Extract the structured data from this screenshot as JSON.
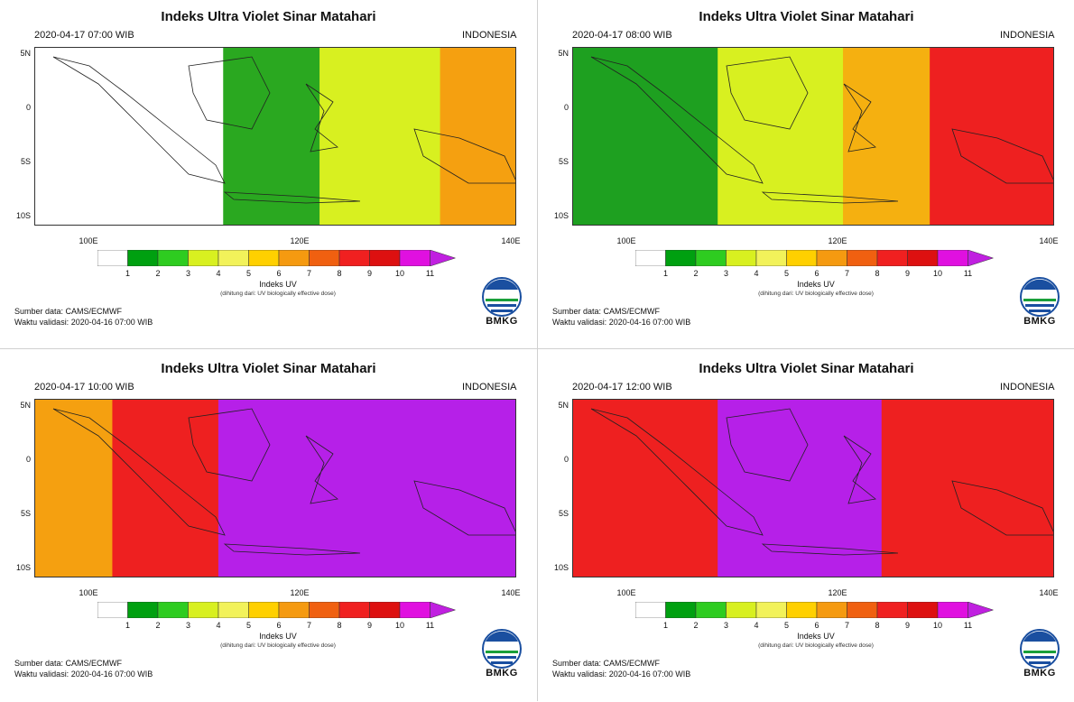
{
  "common": {
    "title": "Indeks Ultra Violet Sinar Matahari",
    "region": "INDONESIA",
    "lat_ticks": [
      "5N",
      "0",
      "5S",
      "10S"
    ],
    "lon_ticks": [
      "100E",
      "120E",
      "140E"
    ],
    "colorbar_labels": [
      "1",
      "2",
      "3",
      "4",
      "5",
      "6",
      "7",
      "8",
      "9",
      "10",
      "11"
    ],
    "colorbar_colors": [
      "#ffffff",
      "#00a010",
      "#2ecc20",
      "#d8f020",
      "#f2f25a",
      "#ffd000",
      "#f59a10",
      "#f06010",
      "#f02020",
      "#dd1010",
      "#e010e0"
    ],
    "colorbar_title": "Indeks UV",
    "colorbar_subtitle": "(dihitung dari: UV biologically effective dose)",
    "source": "Sumber data: CAMS/ECMWF",
    "validation": "Waktu validasi: 2020-04-16 07:00 WIB",
    "logo": "BMKG"
  },
  "panels": [
    {
      "date": "2020-04-17  07:00 WIB",
      "bands": [
        {
          "x": 0,
          "w": 0.39,
          "c": "#ffffff"
        },
        {
          "x": 0.39,
          "w": 0.2,
          "c": "#2aa820"
        },
        {
          "x": 0.59,
          "w": 0.25,
          "c": "#d8f020"
        },
        {
          "x": 0.84,
          "w": 0.16,
          "c": "#f5a010"
        }
      ]
    },
    {
      "date": "2020-04-17  08:00 WIB",
      "bands": [
        {
          "x": 0,
          "w": 0.3,
          "c": "#1ea020"
        },
        {
          "x": 0.3,
          "w": 0.26,
          "c": "#d8f020"
        },
        {
          "x": 0.56,
          "w": 0.18,
          "c": "#f5b010"
        },
        {
          "x": 0.74,
          "w": 0.26,
          "c": "#ee2020"
        }
      ]
    },
    {
      "date": "2020-04-17  10:00 WIB",
      "bands": [
        {
          "x": 0,
          "w": 0.16,
          "c": "#f5a010"
        },
        {
          "x": 0.16,
          "w": 0.22,
          "c": "#ee2020"
        },
        {
          "x": 0.38,
          "w": 0.62,
          "c": "#b620e8"
        }
      ]
    },
    {
      "date": "2020-04-17  12:00 WIB",
      "bands": [
        {
          "x": 0,
          "w": 0.3,
          "c": "#ee2020"
        },
        {
          "x": 0.3,
          "w": 0.34,
          "c": "#b620e8"
        },
        {
          "x": 0.64,
          "w": 0.36,
          "c": "#ee2020"
        }
      ]
    }
  ]
}
